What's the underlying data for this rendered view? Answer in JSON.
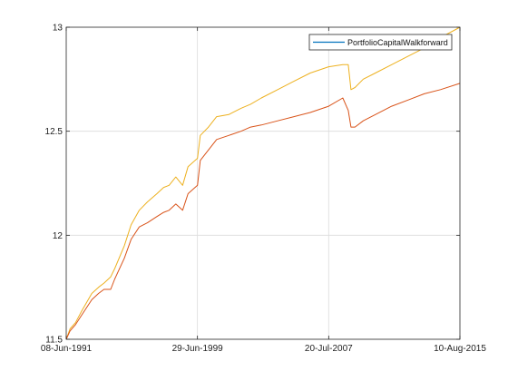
{
  "chart_data": {
    "type": "line",
    "title": "",
    "xlabel": "",
    "ylabel": "",
    "x_axis": {
      "type": "date",
      "range": [
        "1991-06-08",
        "2015-08-10"
      ],
      "ticks": [
        {
          "date": "1991-06-08",
          "label": "08-Jun-1991"
        },
        {
          "date": "1999-06-29",
          "label": "29-Jun-1999"
        },
        {
          "date": "2007-07-20",
          "label": "20-Jul-2007"
        },
        {
          "date": "2015-08-10",
          "label": "10-Aug-2015"
        }
      ]
    },
    "ylim": [
      11.5,
      13
    ],
    "y_ticks": [
      {
        "value": 11.5,
        "label": "11.5"
      },
      {
        "value": 12,
        "label": "12"
      },
      {
        "value": 12.5,
        "label": "12.5"
      },
      {
        "value": 13,
        "label": "13"
      }
    ],
    "grid": true,
    "legend": {
      "placement": "top-right",
      "entries": [
        {
          "label": "PortfolioCapitalWalkforward",
          "color": "#0072bd"
        }
      ]
    },
    "series": [
      {
        "color": "#edb120",
        "points": [
          [
            "1991-06-08",
            11.5
          ],
          [
            "1991-09-01",
            11.55
          ],
          [
            "1992-01-01",
            11.58
          ],
          [
            "1992-06-01",
            11.64
          ],
          [
            "1993-01-01",
            11.72
          ],
          [
            "1993-06-01",
            11.75
          ],
          [
            "1993-10-01",
            11.77
          ],
          [
            "1994-03-01",
            11.8
          ],
          [
            "1994-06-01",
            11.84
          ],
          [
            "1995-01-01",
            11.95
          ],
          [
            "1995-06-01",
            12.05
          ],
          [
            "1995-12-01",
            12.12
          ],
          [
            "1996-06-01",
            12.16
          ],
          [
            "1997-01-01",
            12.2
          ],
          [
            "1997-06-01",
            12.23
          ],
          [
            "1997-10-01",
            12.24
          ],
          [
            "1998-03-01",
            12.28
          ],
          [
            "1998-08-01",
            12.24
          ],
          [
            "1998-12-01",
            12.33
          ],
          [
            "1999-06-29",
            12.37
          ],
          [
            "1999-09-01",
            12.48
          ],
          [
            "2000-03-01",
            12.52
          ],
          [
            "2000-09-01",
            12.57
          ],
          [
            "2001-06-01",
            12.58
          ],
          [
            "2002-03-01",
            12.61
          ],
          [
            "2002-10-01",
            12.63
          ],
          [
            "2003-06-01",
            12.66
          ],
          [
            "2004-06-01",
            12.7
          ],
          [
            "2005-06-01",
            12.74
          ],
          [
            "2006-06-01",
            12.78
          ],
          [
            "2007-07-20",
            12.81
          ],
          [
            "2008-06-01",
            12.82
          ],
          [
            "2008-10-01",
            12.82
          ],
          [
            "2008-12-01",
            12.7
          ],
          [
            "2009-03-01",
            12.71
          ],
          [
            "2009-09-01",
            12.75
          ],
          [
            "2010-06-01",
            12.78
          ],
          [
            "2011-06-01",
            12.82
          ],
          [
            "2012-06-01",
            12.86
          ],
          [
            "2013-06-01",
            12.9
          ],
          [
            "2014-06-01",
            12.95
          ],
          [
            "2015-08-10",
            13.0
          ]
        ]
      },
      {
        "color": "#d95319",
        "points": [
          [
            "1991-06-08",
            11.5
          ],
          [
            "1991-09-01",
            11.54
          ],
          [
            "1992-01-01",
            11.57
          ],
          [
            "1992-06-01",
            11.62
          ],
          [
            "1993-01-01",
            11.69
          ],
          [
            "1993-06-01",
            11.72
          ],
          [
            "1993-10-01",
            11.74
          ],
          [
            "1994-03-01",
            11.74
          ],
          [
            "1994-06-01",
            11.79
          ],
          [
            "1995-01-01",
            11.89
          ],
          [
            "1995-06-01",
            11.98
          ],
          [
            "1995-12-01",
            12.04
          ],
          [
            "1996-06-01",
            12.06
          ],
          [
            "1997-01-01",
            12.09
          ],
          [
            "1997-06-01",
            12.11
          ],
          [
            "1997-10-01",
            12.12
          ],
          [
            "1998-03-01",
            12.15
          ],
          [
            "1998-08-01",
            12.12
          ],
          [
            "1998-12-01",
            12.2
          ],
          [
            "1999-06-29",
            12.24
          ],
          [
            "1999-09-01",
            12.36
          ],
          [
            "2000-03-01",
            12.41
          ],
          [
            "2000-09-01",
            12.46
          ],
          [
            "2001-06-01",
            12.48
          ],
          [
            "2002-03-01",
            12.5
          ],
          [
            "2002-10-01",
            12.52
          ],
          [
            "2003-06-01",
            12.53
          ],
          [
            "2004-06-01",
            12.55
          ],
          [
            "2005-06-01",
            12.57
          ],
          [
            "2006-06-01",
            12.59
          ],
          [
            "2007-07-20",
            12.62
          ],
          [
            "2008-06-01",
            12.66
          ],
          [
            "2008-10-01",
            12.6
          ],
          [
            "2008-12-01",
            12.52
          ],
          [
            "2009-03-01",
            12.52
          ],
          [
            "2009-09-01",
            12.55
          ],
          [
            "2010-06-01",
            12.58
          ],
          [
            "2011-06-01",
            12.62
          ],
          [
            "2012-06-01",
            12.65
          ],
          [
            "2013-06-01",
            12.68
          ],
          [
            "2014-06-01",
            12.7
          ],
          [
            "2015-08-10",
            12.73
          ]
        ]
      }
    ]
  }
}
